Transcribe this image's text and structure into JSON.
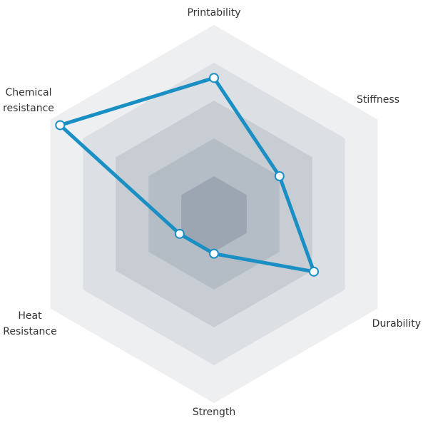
{
  "chart_data": {
    "type": "radar",
    "axes": [
      "Printability",
      "Stiffness",
      "Durability",
      "Strength",
      "Heat\nResistance",
      "Chemical\nresistance"
    ],
    "values": [
      0.72,
      0.4,
      0.61,
      0.21,
      0.21,
      0.94
    ],
    "rmax": 1.0,
    "rings": 5,
    "grid": true,
    "colors": {
      "series": "#1a8fc4",
      "rings": [
        "#eeeff1",
        "#dcdfe3",
        "#c8cdd3",
        "#b4bcc5",
        "#9ba6b2"
      ]
    }
  }
}
